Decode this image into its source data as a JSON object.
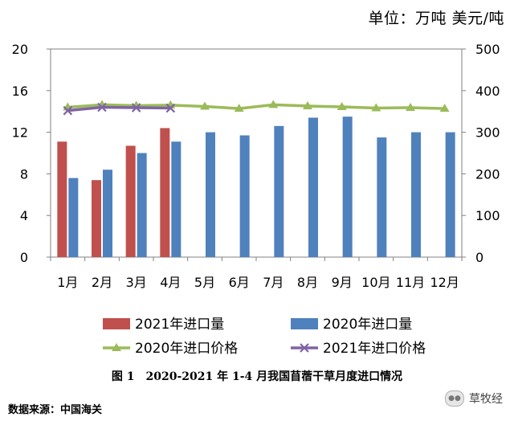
{
  "unit_label": "单位：万吨  美元/吨",
  "caption": {
    "fig_no": "图 1",
    "text": "2020-2021 年 1-4 月我国苜蓿干草月度进口情况"
  },
  "source": "数据来源：中国海关",
  "watermark": {
    "text": "草牧经"
  },
  "colors": {
    "bar_2021": "#C0504D",
    "bar_2020": "#4F81BD",
    "line_2020": "#9BBB59",
    "line_2021": "#8064A2",
    "axis": "#808080"
  },
  "chart_data": {
    "type": "bar",
    "categories": [
      "1月",
      "2月",
      "3月",
      "4月",
      "5月",
      "6月",
      "7月",
      "8月",
      "9月",
      "10月",
      "11月",
      "12月"
    ],
    "y_left": {
      "ticks": [
        "0",
        "4",
        "8",
        "12",
        "16",
        "20"
      ],
      "ylim": [
        0,
        20
      ]
    },
    "y_right": {
      "ticks": [
        "0",
        "100",
        "200",
        "300",
        "400",
        "500"
      ],
      "ylim": [
        0,
        500
      ]
    },
    "bar_series": [
      {
        "name": "2021年进口量",
        "values": [
          11.1,
          7.4,
          10.7,
          12.4,
          null,
          null,
          null,
          null,
          null,
          null,
          null,
          null
        ]
      },
      {
        "name": "2020年进口量",
        "values": [
          7.6,
          8.4,
          10.0,
          11.1,
          12.0,
          11.7,
          12.6,
          13.4,
          13.5,
          11.5,
          12.0,
          12.0
        ]
      }
    ],
    "line_series": [
      {
        "name": "2020年进口价格",
        "marker": "triangle",
        "values": [
          360,
          366,
          364,
          365,
          362,
          357,
          366,
          363,
          361,
          358,
          359,
          357
        ]
      },
      {
        "name": "2021年进口价格",
        "marker": "x",
        "values": [
          352,
          360,
          359,
          358,
          null,
          null,
          null,
          null,
          null,
          null,
          null,
          null
        ]
      }
    ],
    "grid": false
  }
}
